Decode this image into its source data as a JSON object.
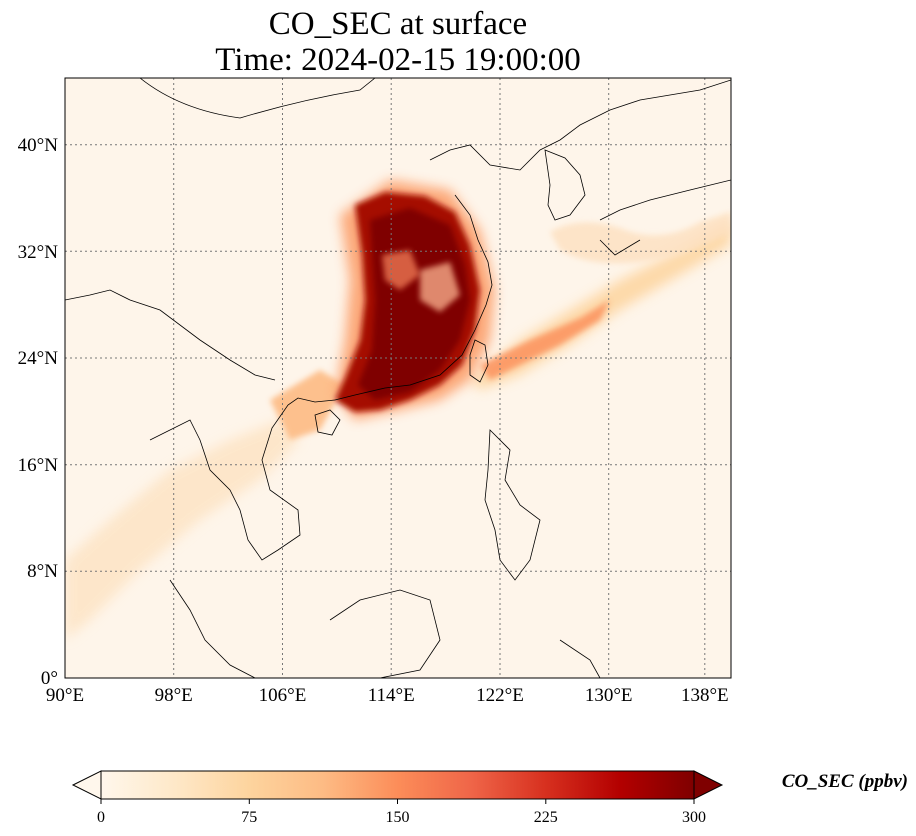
{
  "figure": {
    "title_line1": "CO_SEC at surface",
    "title_line2": "Time: 2024-02-15 19:00:00"
  },
  "map": {
    "lon_range": [
      90,
      139
    ],
    "lat_range": [
      0,
      45
    ],
    "projection": "PlateCarree",
    "gridlines": "dotted grey",
    "x_ticks": [
      "90°E",
      "98°E",
      "106°E",
      "114°E",
      "122°E",
      "130°E",
      "138°E"
    ],
    "y_ticks": [
      "0°",
      "8°N",
      "16°N",
      "24°N",
      "32°N",
      "40°N"
    ],
    "field": "CO_SEC",
    "plume_description_regions": [
      {
        "name": "core",
        "lon": [
          111,
          121
        ],
        "lat": [
          19,
          36
        ],
        "level": "≥300"
      },
      {
        "name": "taiwan-band",
        "lon": [
          121,
          131
        ],
        "lat": [
          22,
          30
        ],
        "level": "~100-200"
      },
      {
        "name": "japan-arc",
        "lon": [
          126,
          139
        ],
        "lat": [
          28,
          36
        ],
        "level": "~50-100"
      },
      {
        "name": "indochina-west",
        "lon": [
          90,
          107
        ],
        "lat": [
          5,
          22
        ],
        "level": "~20-60"
      }
    ]
  },
  "colorbar": {
    "label": "CO_SEC (ppbv)",
    "ticks": [
      "0",
      "75",
      "150",
      "225",
      "300"
    ],
    "min": 0,
    "max": 300,
    "extend": "both",
    "colormap": "OrRd",
    "colors": [
      "#fff7ec",
      "#fee8c8",
      "#fdd49e",
      "#fdbb84",
      "#fc8d59",
      "#ef6548",
      "#d7301f",
      "#b30000",
      "#7f0000"
    ]
  }
}
